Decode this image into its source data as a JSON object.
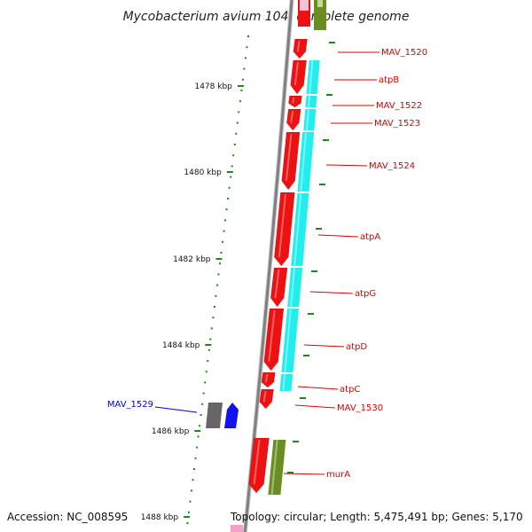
{
  "title": "Mycobacterium avium 104, complete genome",
  "footer": {
    "accession": "Accession: NC_008595",
    "topology": "Topology: circular; Length: 5,475,491 bp; Genes: 5,170"
  },
  "colors": {
    "backbone": "#808080",
    "gene_red": "#ee1111",
    "gene_cyan": "#22eeee",
    "gene_olive": "#6b8e23",
    "gene_gray": "#666666",
    "gene_blue": "#1111ee",
    "gene_pink": "#f5a0c8",
    "tick": "#1a8a1a",
    "label_red": "#dd0000",
    "label_blue": "#0000cc"
  },
  "kbp_ticks": [
    {
      "label": "1478 kbp"
    },
    {
      "label": "1480 kbp"
    },
    {
      "label": "1482 kbp"
    },
    {
      "label": "1484 kbp"
    },
    {
      "label": "1486 kbp"
    },
    {
      "label": "1488 kbp"
    }
  ],
  "gene_labels": [
    {
      "name": "MAV_1520",
      "color": "red"
    },
    {
      "name": "atpB",
      "color": "red"
    },
    {
      "name": "MAV_1522",
      "color": "red"
    },
    {
      "name": "MAV_1523",
      "color": "red"
    },
    {
      "name": "MAV_1524",
      "color": "red"
    },
    {
      "name": "atpA",
      "color": "red"
    },
    {
      "name": "atpG",
      "color": "red"
    },
    {
      "name": "atpD",
      "color": "red"
    },
    {
      "name": "atpC",
      "color": "red"
    },
    {
      "name": "MAV_1530",
      "color": "red"
    },
    {
      "name": "murA",
      "color": "red"
    },
    {
      "name": "MAV_1529",
      "color": "blue"
    }
  ]
}
